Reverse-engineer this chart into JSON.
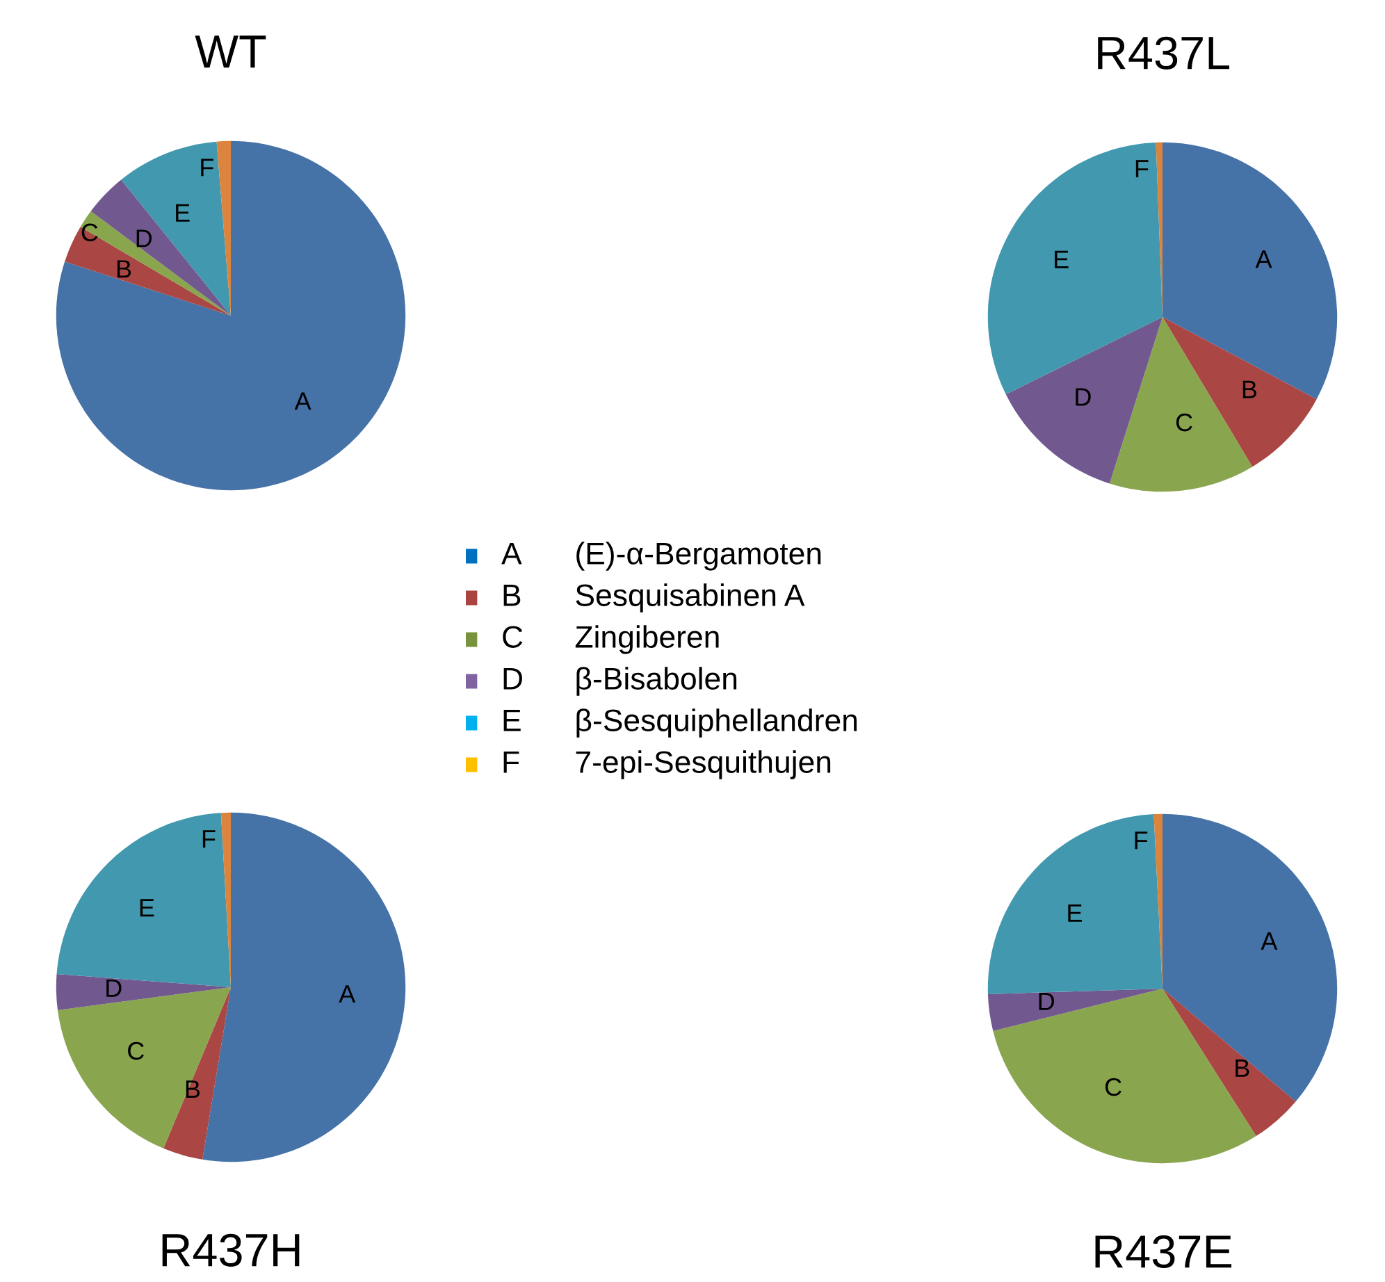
{
  "chart_data": [
    {
      "type": "pie",
      "title": "WT",
      "categories": [
        "A",
        "B",
        "C",
        "D",
        "E",
        "F"
      ],
      "values": [
        80,
        3.5,
        1.7,
        4,
        9.5,
        1.3
      ],
      "colors": [
        "#4572a7",
        "#aa4643",
        "#89a54e",
        "#71588f",
        "#4198af",
        "#db843d"
      ]
    },
    {
      "type": "pie",
      "title": "R437L",
      "categories": [
        "A",
        "B",
        "C",
        "D",
        "E",
        "F"
      ],
      "values": [
        32.8,
        8.6,
        13.5,
        12.8,
        31.7,
        0.6
      ],
      "colors": [
        "#4572a7",
        "#aa4643",
        "#89a54e",
        "#71588f",
        "#4198af",
        "#db843d"
      ]
    },
    {
      "type": "pie",
      "title": "R437H",
      "categories": [
        "A",
        "B",
        "C",
        "D",
        "E",
        "F"
      ],
      "values": [
        52.6,
        3.7,
        16.6,
        3.3,
        22.9,
        0.9
      ],
      "colors": [
        "#4572a7",
        "#aa4643",
        "#89a54e",
        "#71588f",
        "#4198af",
        "#db843d"
      ]
    },
    {
      "type": "pie",
      "title": "R437E",
      "categories": [
        "A",
        "B",
        "C",
        "D",
        "E",
        "F"
      ],
      "values": [
        36.2,
        4.8,
        30.1,
        3.4,
        24.7,
        0.8
      ],
      "colors": [
        "#4572a7",
        "#aa4643",
        "#89a54e",
        "#71588f",
        "#4198af",
        "#db843d"
      ]
    },
    {
      "type": "other",
      "categories": [
        "A",
        "B",
        "C",
        "D",
        "E",
        "F"
      ],
      "annotations": [
        "(E)-α-Bergamoten",
        "Sesquisabinen A",
        "Zingiberen",
        "β-Bisabolen",
        "β-Sesquiphellandren",
        "7-epi-Sesquithujen"
      ],
      "colors": [
        "#0070c0",
        "#a94441",
        "#77933c",
        "#8064a2",
        "#00b0f0",
        "#ffc000"
      ]
    }
  ]
}
